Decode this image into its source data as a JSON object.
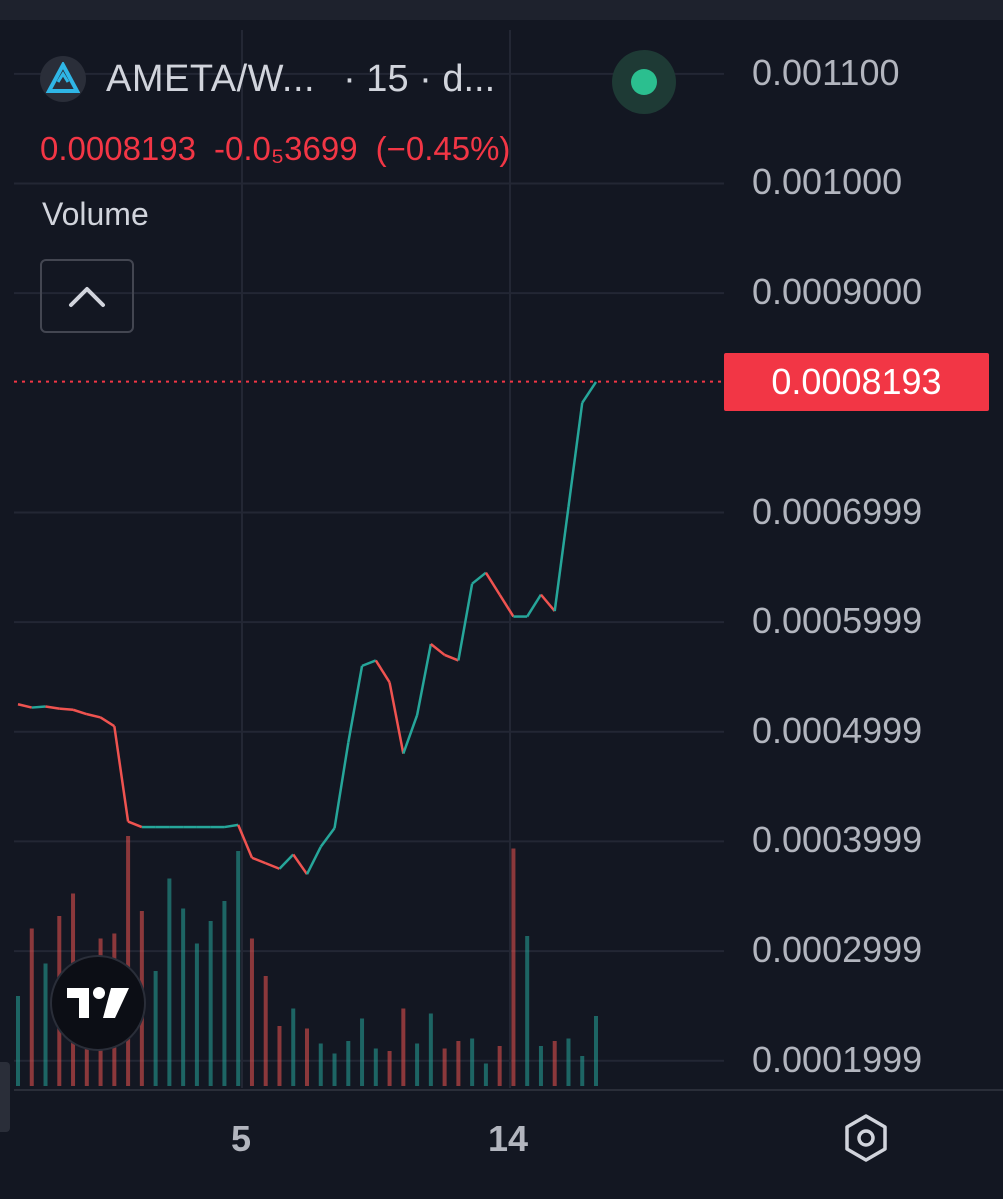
{
  "legend": {
    "symbol": "AMETA/W...",
    "meta": "· 15 · d...",
    "last_price": "0.0008193",
    "change": "-0.0₅3699",
    "change_pct": "(−0.45%)",
    "indicator": "Volume"
  },
  "current_price_label": "0.0008193",
  "colors": {
    "up": "#26a69a",
    "down": "#ef5350",
    "price_line": "#f23645",
    "background": "#131722"
  },
  "icons": {
    "logo": "ameta-logo-icon",
    "collapse": "chevron-up-icon",
    "settings": "settings-hexagon-icon",
    "brand": "tradingview-logo-icon"
  },
  "chart_data": {
    "type": "line",
    "title": "AMETA/W... · 15 · d...",
    "xlabel": "",
    "ylabel": "",
    "x_ticks": [
      "5",
      "14"
    ],
    "y_ticks": [
      "0.001100",
      "0.001000",
      "0.0009000",
      "0.0006999",
      "0.0005999",
      "0.0004999",
      "0.0003999",
      "0.0002999",
      "0.0001999"
    ],
    "ylim": [
      0.000175,
      0.00114
    ],
    "last_price": 0.0008193,
    "grid": true,
    "series": [
      {
        "x": [
          0,
          0.5,
          1,
          1.5,
          2,
          2.5,
          3,
          3.5,
          4,
          4.5,
          5,
          5.5,
          6,
          6.5,
          7,
          7.5,
          8,
          8.5,
          9,
          9.5,
          10,
          10.5,
          11,
          11.5,
          12,
          12.5,
          13,
          13.5,
          14,
          14.5,
          15,
          15.5,
          16,
          16.5,
          17,
          17.5,
          18,
          18.5,
          19,
          19.5,
          20,
          20.5,
          21
        ],
        "values": [
          0.000525,
          0.000522,
          0.000523,
          0.000521,
          0.00052,
          0.000516,
          0.000513,
          0.000505,
          0.000418,
          0.000413,
          0.000413,
          0.000413,
          0.000413,
          0.000413,
          0.000413,
          0.000413,
          0.000415,
          0.000385,
          0.00038,
          0.000375,
          0.000388,
          0.00037,
          0.000395,
          0.000412,
          0.00049,
          0.00056,
          0.000565,
          0.000545,
          0.00048,
          0.000515,
          0.00058,
          0.00057,
          0.000565,
          0.000635,
          0.000645,
          0.000625,
          0.000605,
          0.000605,
          0.000625,
          0.00061,
          0.000705,
          0.0008,
          0.000819
        ]
      }
    ],
    "volume": {
      "x": [
        0,
        0.5,
        1,
        1.5,
        2,
        2.5,
        3,
        3.5,
        4,
        4.5,
        5,
        5.5,
        6,
        6.5,
        7,
        7.5,
        8,
        8.5,
        9,
        9.5,
        10,
        10.5,
        11,
        11.5,
        12,
        12.5,
        13,
        13.5,
        14,
        14.5,
        15,
        15.5,
        16,
        16.5,
        17,
        17.5,
        18,
        18.5,
        19,
        19.5,
        20,
        20.5,
        21
      ],
      "values": [
        36,
        63,
        49,
        68,
        77,
        50,
        59,
        61,
        100,
        70,
        46,
        83,
        71,
        57,
        66,
        74,
        94,
        59,
        44,
        24,
        31,
        23,
        17,
        13,
        18,
        27,
        15,
        14,
        31,
        17,
        29,
        15,
        18,
        19,
        9,
        16,
        95,
        60,
        16,
        18,
        19,
        12,
        28
      ]
    }
  }
}
